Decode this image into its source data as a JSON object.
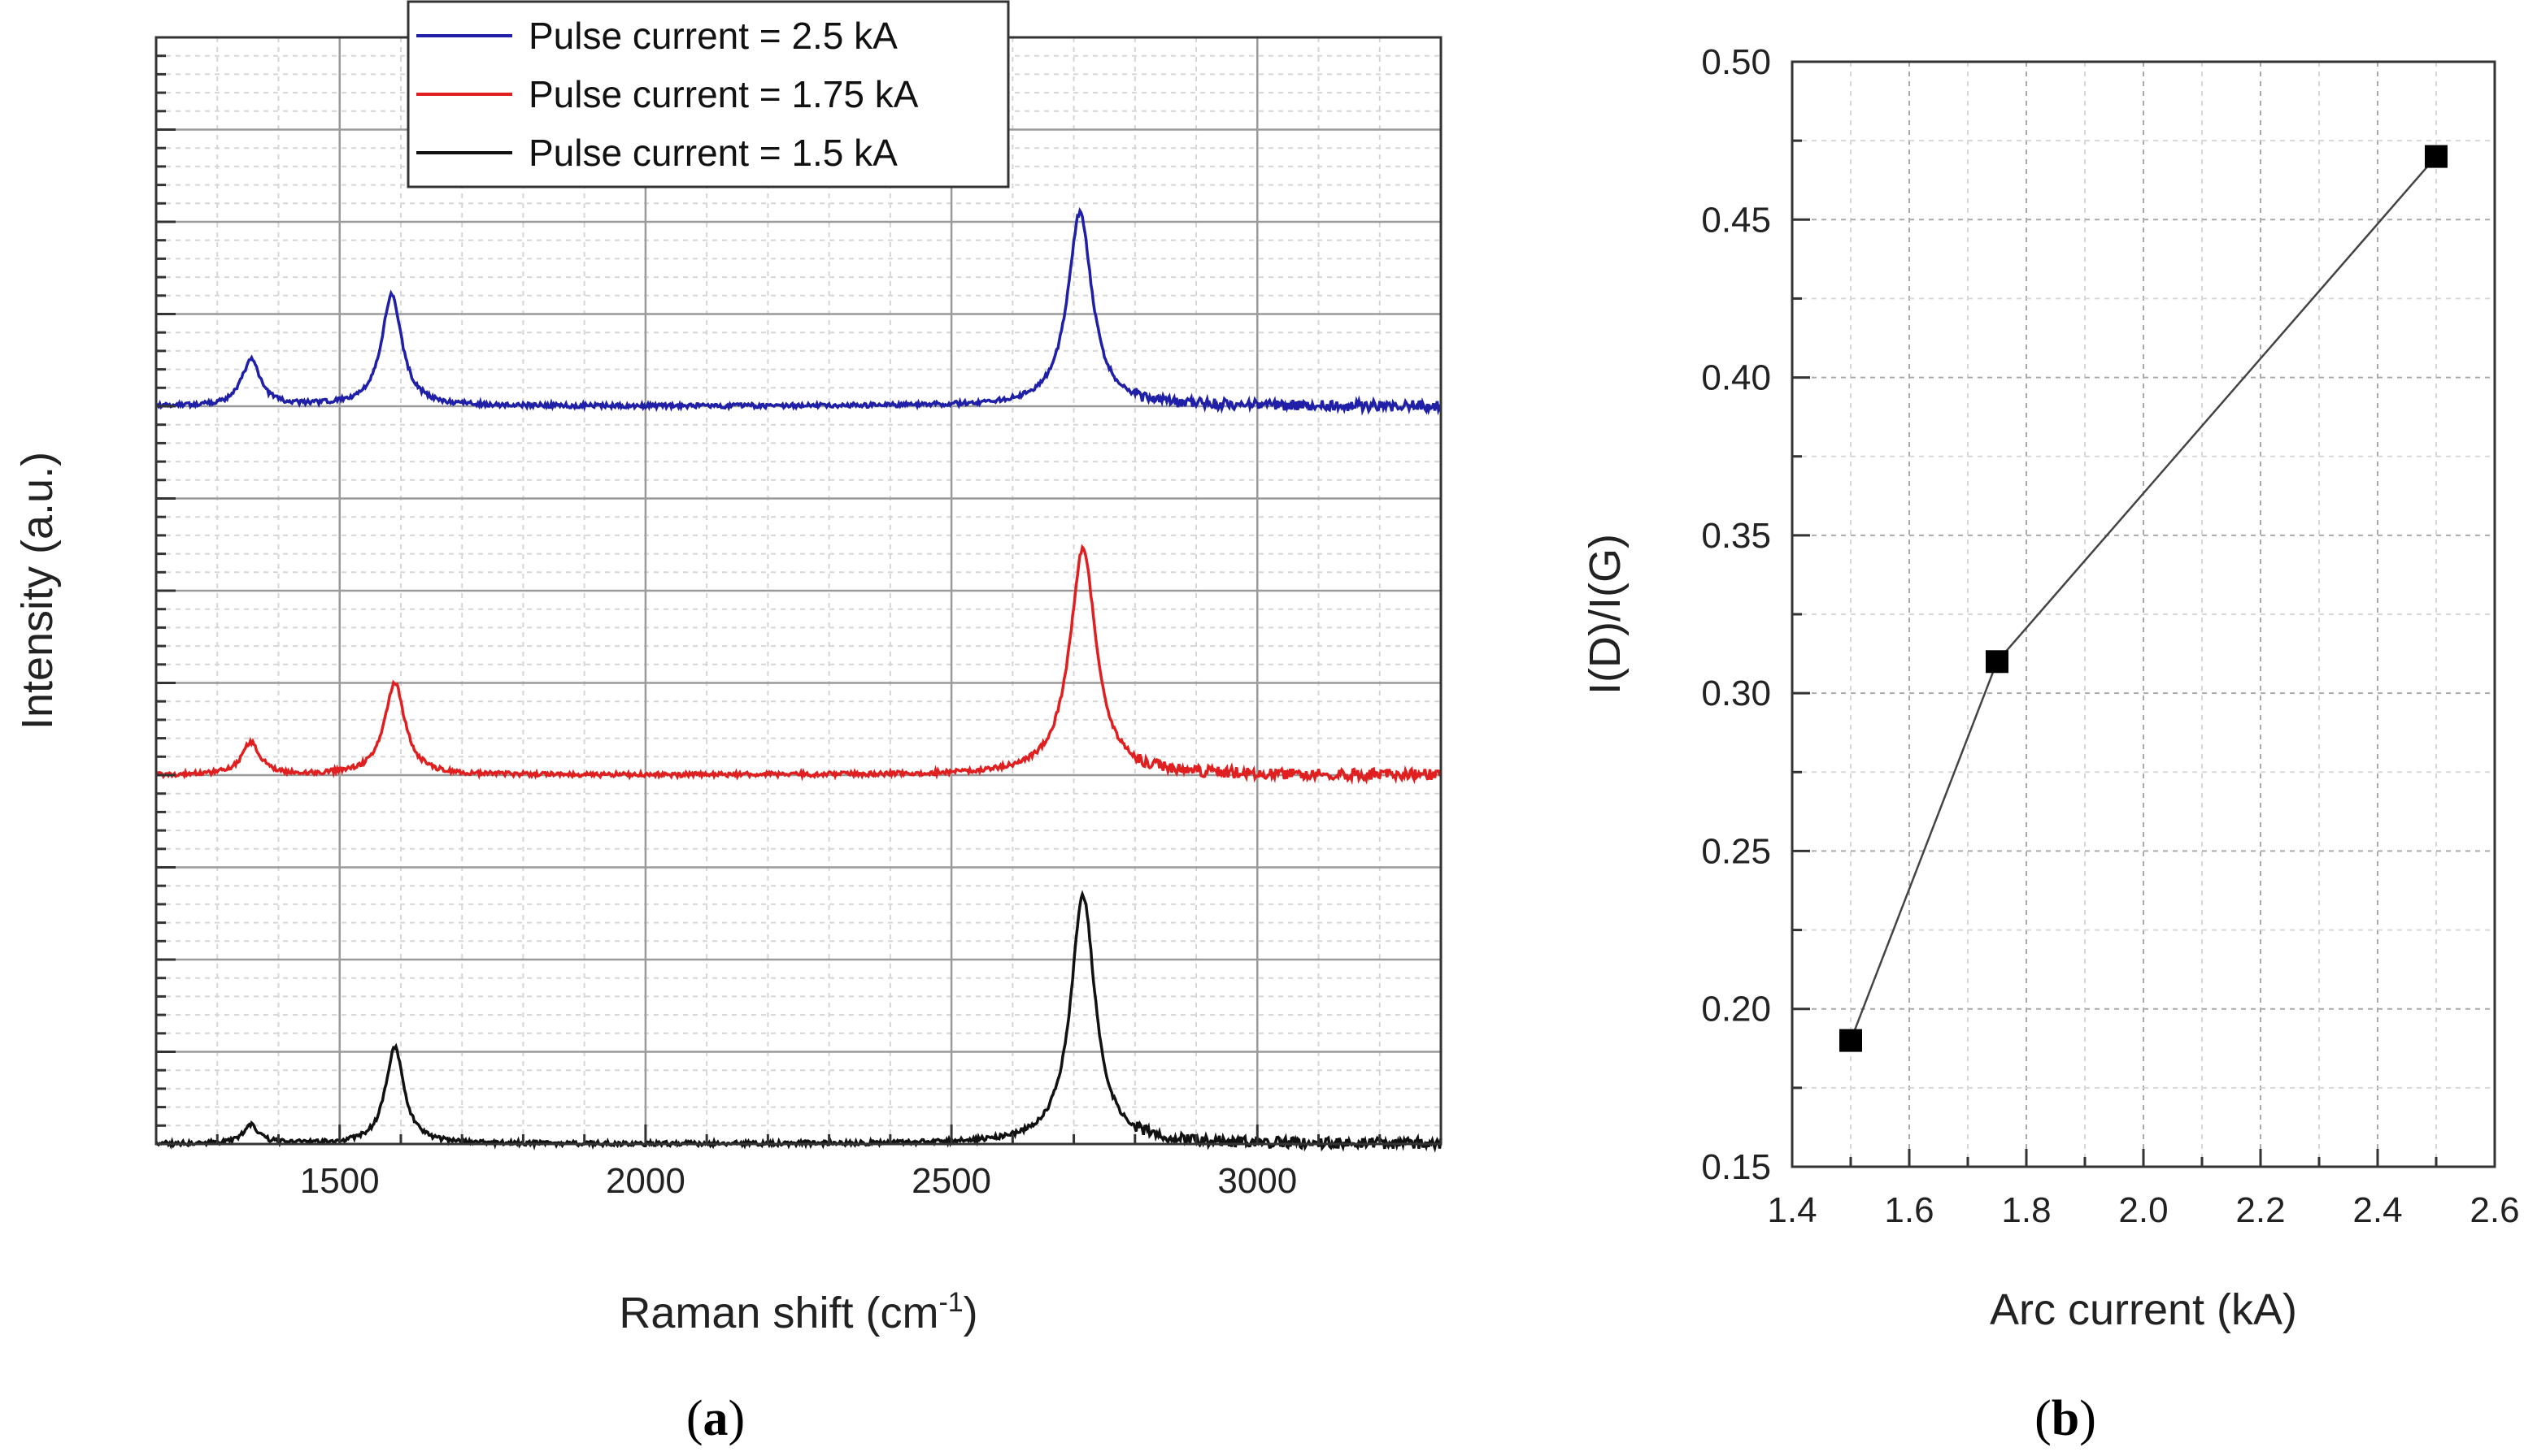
{
  "chart_data": [
    {
      "panel": "a",
      "type": "line",
      "xlabel": "Raman shift (cm",
      "xlabel_sup": "-1",
      "xlabel_close": ")",
      "ylabel": "Intensity (a.u.)",
      "xlim": [
        1200,
        3300
      ],
      "xticks": [
        1500,
        2000,
        2500,
        3000
      ],
      "xtick_labels": [
        "1500",
        "2000",
        "2500",
        "3000"
      ],
      "grid": true,
      "legend_position": "top-center",
      "series": [
        {
          "name": "Pulse current = 2.5 kA",
          "color": "#1f1fa8",
          "baseline": 8,
          "peaks": [
            {
              "x": 1355,
              "height": 0.5,
              "width": 18
            },
            {
              "x": 1585,
              "height": 1.2,
              "width": 20
            },
            {
              "x": 2710,
              "height": 2.1,
              "width": 24
            }
          ]
        },
        {
          "name": "Pulse current = 1.75 kA",
          "color": "#e02020",
          "baseline": 4,
          "peaks": [
            {
              "x": 1355,
              "height": 0.35,
              "width": 18
            },
            {
              "x": 1590,
              "height": 1.0,
              "width": 20
            },
            {
              "x": 2715,
              "height": 2.45,
              "width": 26
            }
          ]
        },
        {
          "name": "Pulse current = 1.5 kA",
          "color": "#111111",
          "baseline": 0,
          "peaks": [
            {
              "x": 1355,
              "height": 0.2,
              "width": 16
            },
            {
              "x": 1590,
              "height": 1.05,
              "width": 18
            },
            {
              "x": 2715,
              "height": 2.7,
              "width": 24
            }
          ]
        }
      ]
    },
    {
      "panel": "b",
      "type": "line",
      "xlabel": "Arc current (kA)",
      "ylabel": "I(D)/I(G)",
      "xlim": [
        1.4,
        2.6
      ],
      "ylim": [
        0.15,
        0.5
      ],
      "xticks": [
        "1.4",
        "1.6",
        "1.8",
        "2.0",
        "2.2",
        "2.4",
        "2.6"
      ],
      "yticks": [
        "0.15",
        "0.20",
        "0.25",
        "0.30",
        "0.35",
        "0.40",
        "0.45",
        "0.50"
      ],
      "grid": true,
      "x": [
        1.5,
        1.75,
        2.5
      ],
      "y": [
        0.19,
        0.31,
        0.47
      ],
      "marker": "square",
      "color": "#000000"
    }
  ],
  "labels": {
    "panel_a": "a",
    "panel_b": "b",
    "open": "(",
    "close": ")"
  }
}
